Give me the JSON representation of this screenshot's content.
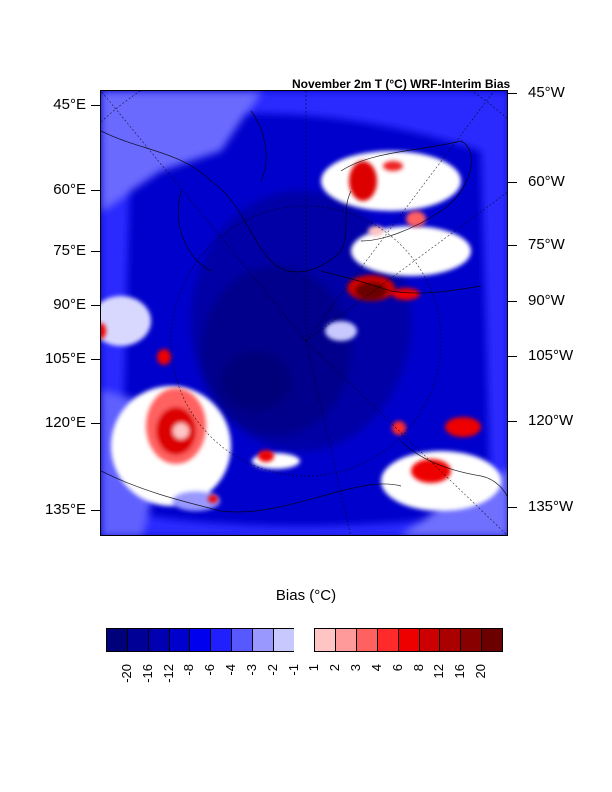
{
  "map": {
    "title": "November 2m T (°C) WRF-Interim Bias",
    "left_labels": [
      "45°E",
      "60°E",
      "75°E",
      "90°E",
      "105°E",
      "120°E",
      "135°E"
    ],
    "right_labels": [
      "45°W",
      "60°W",
      "75°W",
      "90°W",
      "105°W",
      "120°W",
      "135°W"
    ]
  },
  "colorbar": {
    "title": "Bias (°C)",
    "levels": [
      "-20",
      "-16",
      "-12",
      "-8",
      "-6",
      "-4",
      "-3",
      "-2",
      "-1",
      "1",
      "2",
      "3",
      "4",
      "6",
      "8",
      "12",
      "16",
      "20"
    ],
    "colors": [
      "#00007a",
      "#000096",
      "#0000b2",
      "#0000cc",
      "#0000ee",
      "#2020ff",
      "#5858ff",
      "#9898ff",
      "#c8c8ff",
      "#ffffff",
      "#ffc4c4",
      "#ff9a9a",
      "#ff6060",
      "#ff2a2a",
      "#ee0000",
      "#cc0000",
      "#aa0000",
      "#880000",
      "#6a0000"
    ]
  }
}
